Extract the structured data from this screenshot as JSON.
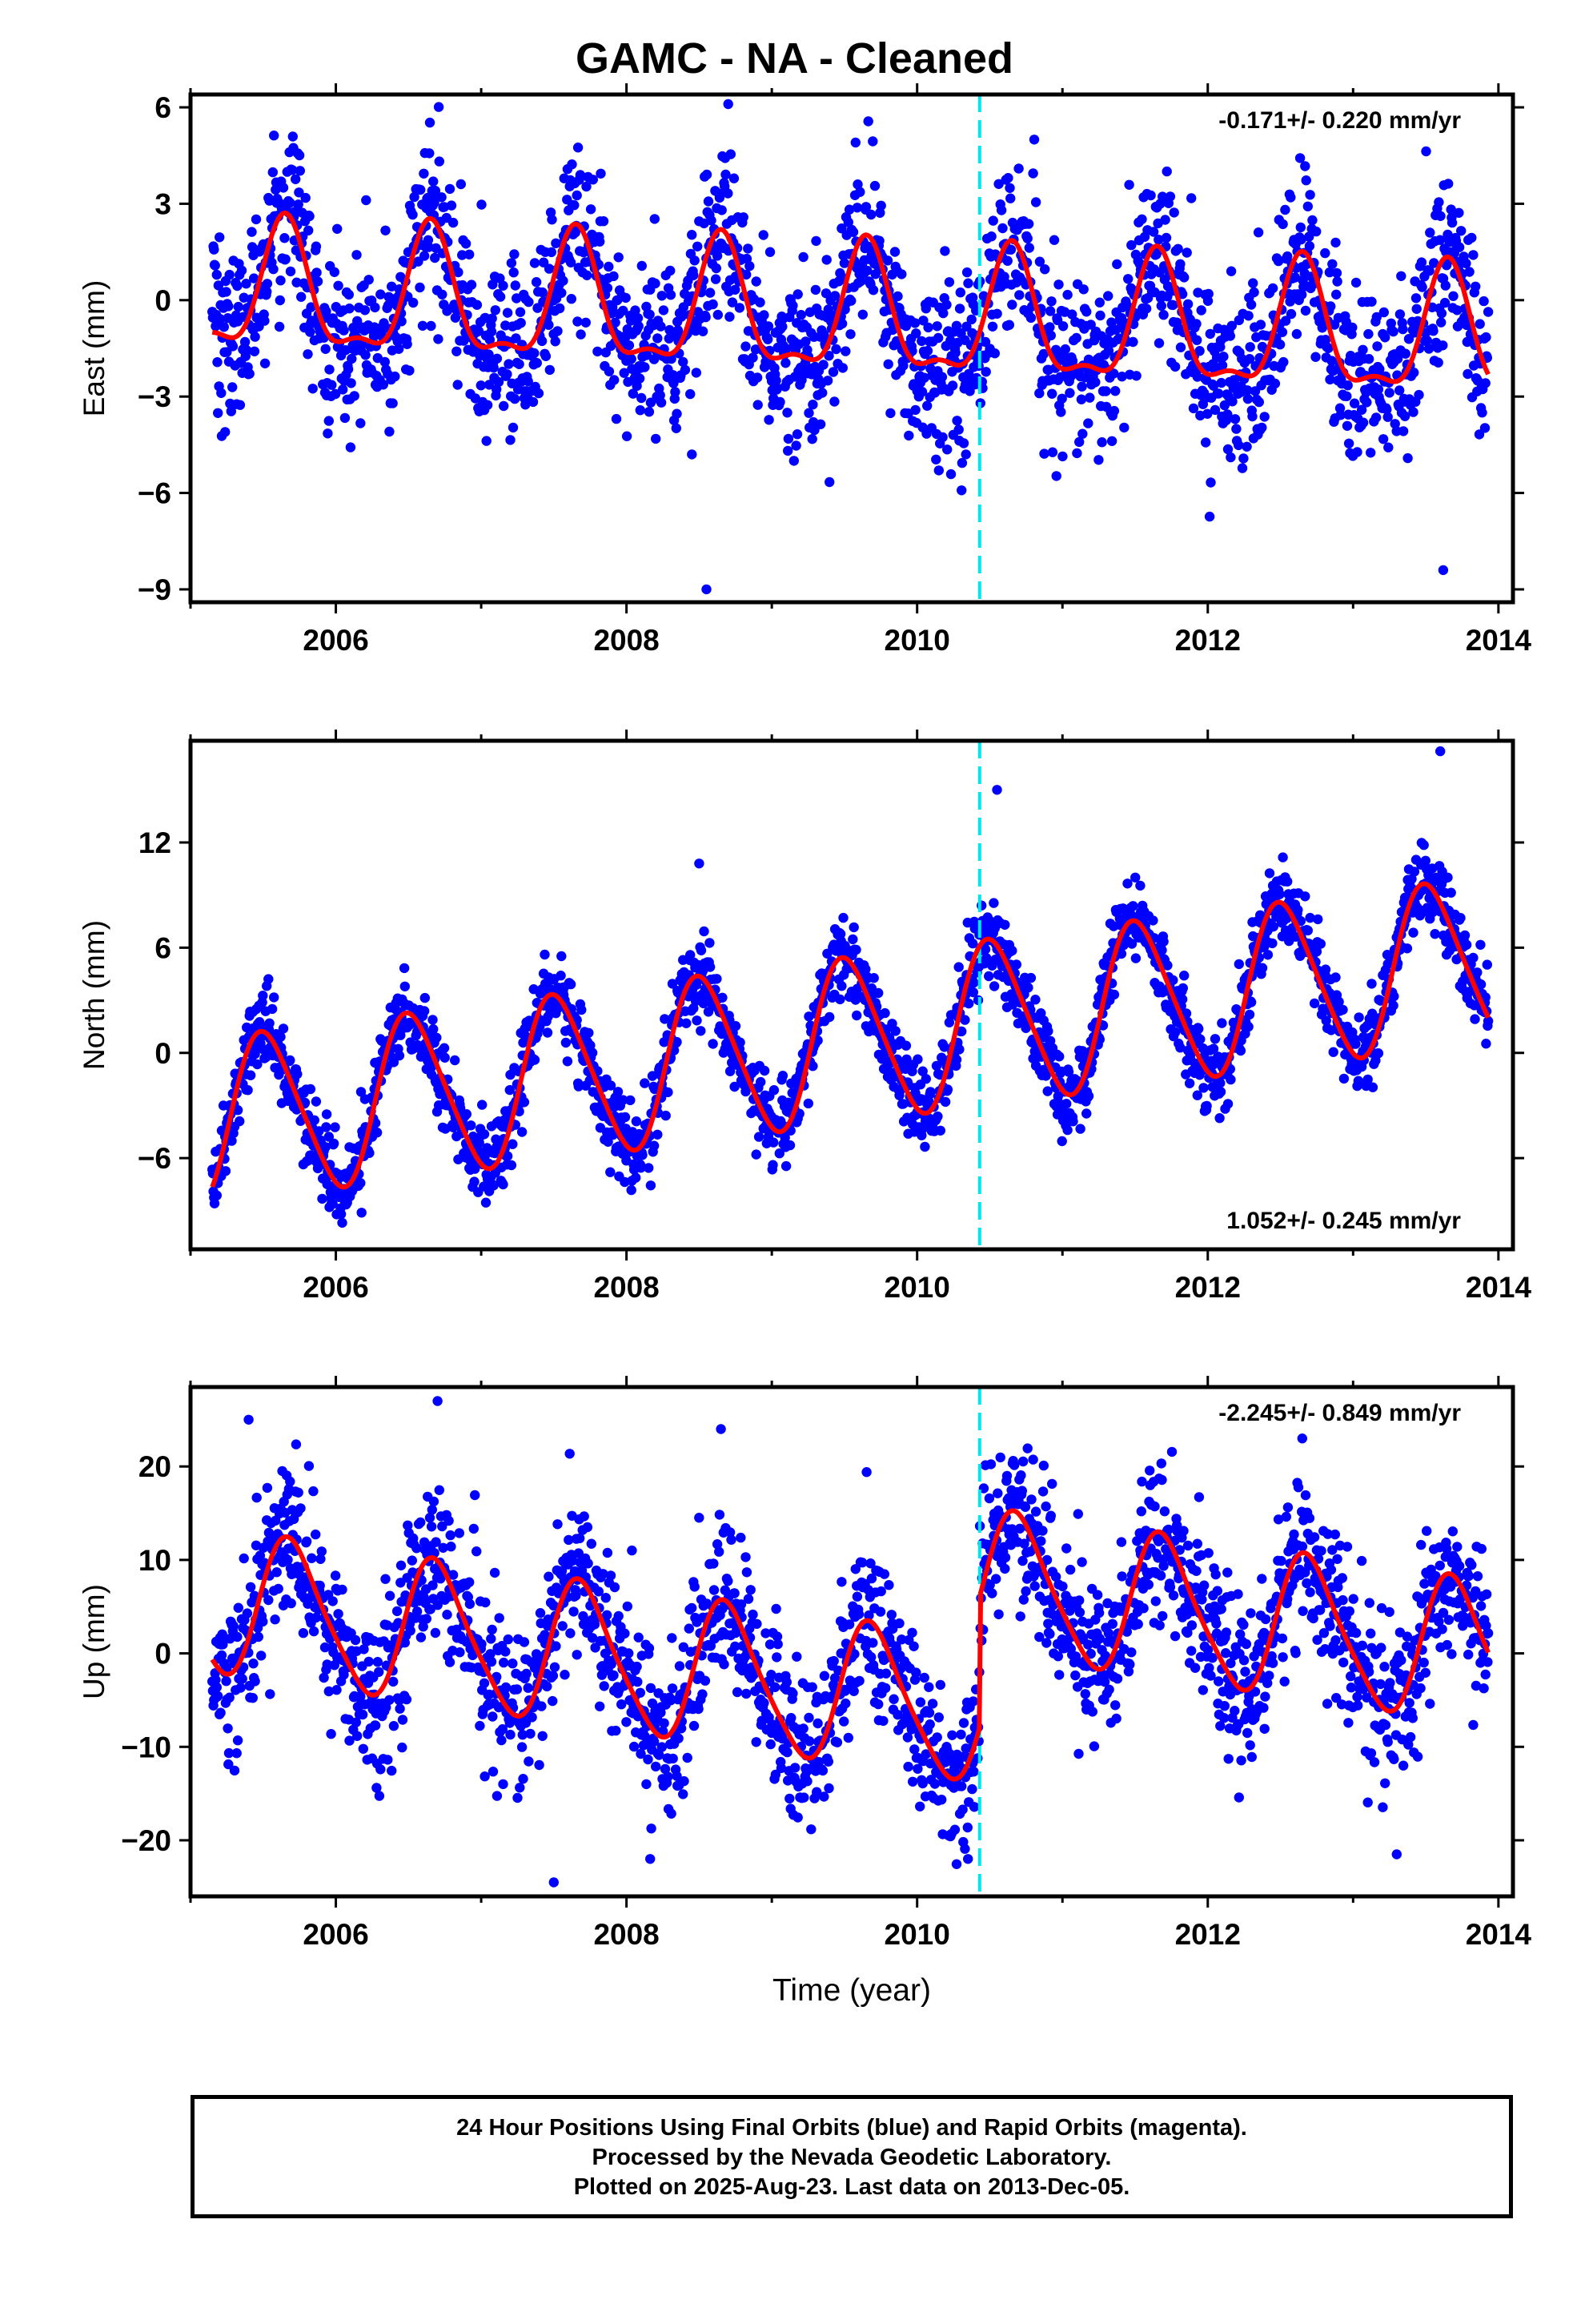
{
  "figure_title": "GAMC  - NA - Cleaned",
  "xlabel": "Time (year)",
  "colors": {
    "final": "#0000ff",
    "model": "#ff0000",
    "event": "#00e5ee",
    "axis": "#000000"
  },
  "footer": {
    "line1": "24 Hour Positions Using Final Orbits (blue) and Rapid Orbits (magenta).",
    "line2": "Processed by the Nevada Geodetic Laboratory.",
    "line3": "Plotted on 2025-Aug-23. Last data on 2013-Dec-05."
  },
  "chart_data": [
    {
      "type": "scatter",
      "component": "East",
      "ylabel": "East (mm)",
      "rate_text": "-0.171+/- 0.220 mm/yr",
      "rate_position": "top-right",
      "xlim": [
        2005.0,
        2014.1
      ],
      "ylim": [
        -9.4,
        6.4
      ],
      "xticks": [
        2006,
        2008,
        2010,
        2012,
        2014
      ],
      "yticks": [
        -9,
        -6,
        -3,
        0,
        3,
        6
      ],
      "ytick_labels": [
        "−9",
        "−6",
        "−3",
        "0",
        "3",
        "6"
      ],
      "event_line_x": 2010.43,
      "data_span": [
        2005.15,
        2013.93
      ],
      "model": {
        "offset": 0.2,
        "trend": -0.171,
        "ref_year": 2005.15,
        "annual_amp": 1.9,
        "annual_phase_year": 2005.65,
        "semiannual_amp": 0.7,
        "semiannual_phase_year": 2005.65,
        "step_year": 2010.43,
        "step": 0.0
      },
      "scatter_std": 1.3,
      "outliers": [
        [
          2008.55,
          -9.0
        ],
        [
          2008.7,
          6.1
        ],
        [
          2013.62,
          -8.4
        ],
        [
          2008.45,
          -4.8
        ]
      ],
      "grid": false
    },
    {
      "type": "scatter",
      "component": "North",
      "ylabel": "North (mm)",
      "rate_text": "1.052+/- 0.245 mm/yr",
      "rate_position": "bottom-right",
      "xlim": [
        2005.0,
        2014.1
      ],
      "ylim": [
        -11.2,
        17.8
      ],
      "xticks": [
        2006,
        2008,
        2010,
        2012,
        2014
      ],
      "yticks": [
        -6,
        0,
        6,
        12
      ],
      "ytick_labels": [
        "−6",
        "0",
        "6",
        "12"
      ],
      "event_line_x": 2010.43,
      "data_span": [
        2005.15,
        2013.93
      ],
      "model": {
        "offset": -3.9,
        "trend": 1.052,
        "ref_year": 2005.15,
        "annual_amp": 4.6,
        "annual_phase_year": 2005.52,
        "semiannual_amp": 0.6,
        "semiannual_phase_year": 2005.4,
        "step_year": 2010.43,
        "step": 0.0
      },
      "scatter_std": 1.15,
      "outliers": [
        [
          2010.55,
          15.0
        ],
        [
          2013.6,
          17.2
        ],
        [
          2008.5,
          10.8
        ]
      ],
      "grid": false
    },
    {
      "type": "scatter",
      "component": "Up",
      "ylabel": "Up (mm)",
      "rate_text": "-2.245+/- 0.849 mm/yr",
      "rate_position": "top-right",
      "xlim": [
        2005.0,
        2014.1
      ],
      "ylim": [
        -26,
        28.5
      ],
      "xticks": [
        2006,
        2008,
        2010,
        2012,
        2014
      ],
      "yticks": [
        -20,
        -10,
        0,
        10,
        20
      ],
      "ytick_labels": [
        "−20",
        "−10",
        "0",
        "10",
        "20"
      ],
      "event_line_x": 2010.43,
      "data_span": [
        2005.15,
        2013.93
      ],
      "model": {
        "offset": 5.5,
        "trend": -2.245,
        "ref_year": 2005.15,
        "annual_amp": 7.5,
        "annual_phase_year": 2005.7,
        "semiannual_amp": 1.2,
        "semiannual_phase_year": 2005.6,
        "step_year": 2010.43,
        "step": 14.0
      },
      "scatter_std": 4.2,
      "outliers": [
        [
          2007.5,
          -24.5
        ],
        [
          2006.7,
          27.0
        ],
        [
          2005.4,
          25.0
        ],
        [
          2010.35,
          -22.0
        ],
        [
          2013.3,
          -21.5
        ],
        [
          2008.65,
          24.0
        ],
        [
          2012.65,
          23.0
        ]
      ],
      "grid": false
    }
  ]
}
